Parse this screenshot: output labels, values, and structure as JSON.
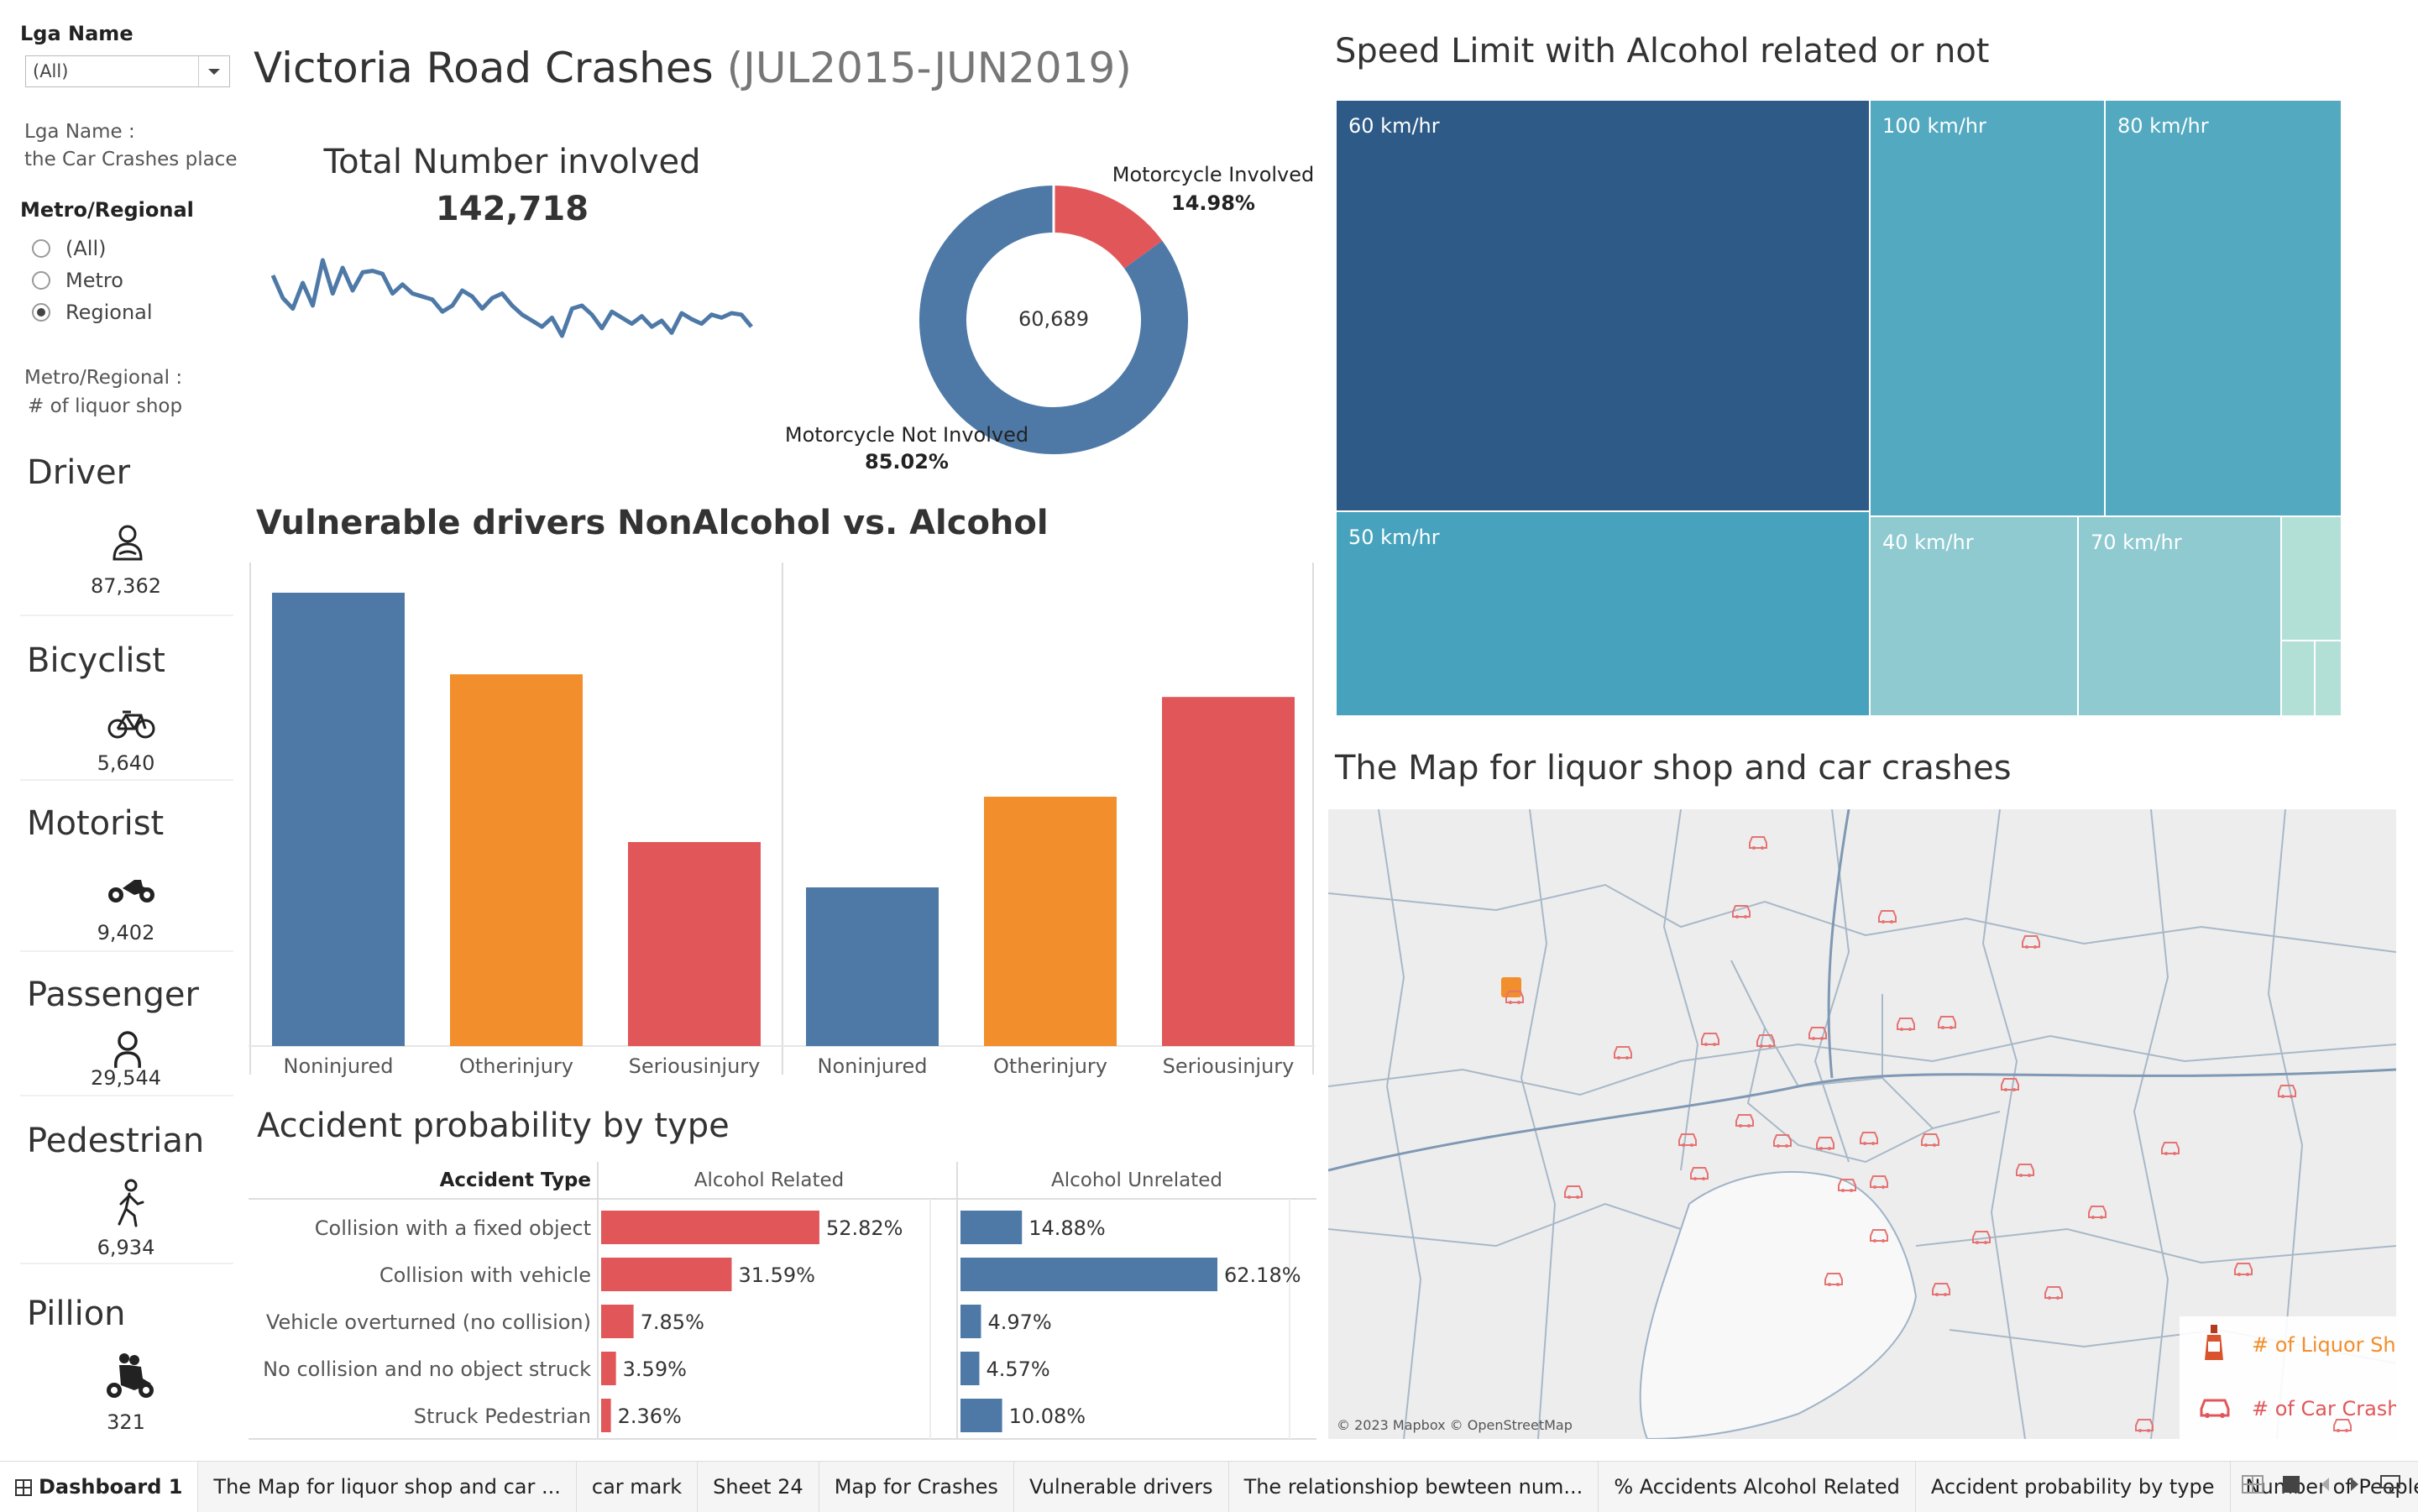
{
  "filters": {
    "lga_label": "Lga Name",
    "lga_value": "(All)",
    "lga_note_1": "Lga Name :",
    "lga_note_2": "the Car Crashes place",
    "metro_label": "Metro/Regional",
    "options": [
      "(All)",
      "Metro",
      "Regional"
    ],
    "selected": "Regional",
    "metro_note_1": "Metro/Regional :",
    "metro_note_2": "# of liquor shop"
  },
  "kpis": [
    {
      "title": "Driver",
      "icon": "driver-icon",
      "value": "87,362"
    },
    {
      "title": "Bicyclist",
      "icon": "bicycle-icon",
      "value": "5,640"
    },
    {
      "title": "Motorist",
      "icon": "motorcycle-icon",
      "value": "9,402"
    },
    {
      "title": "Passenger",
      "icon": "passenger-icon",
      "value": "29,544"
    },
    {
      "title": "Pedestrian",
      "icon": "pedestrian-icon",
      "value": "6,934"
    },
    {
      "title": "Pillion",
      "icon": "pillion-icon",
      "value": "321"
    }
  ],
  "header": {
    "title_main": "Victoria Road Crashes",
    "title_period": "(JUL2015-JUN2019)"
  },
  "total": {
    "label": "Total Number involved",
    "value": "142,718"
  },
  "donut": {
    "center": "60,689",
    "involved_label": "Motorcycle Involved",
    "involved_pct": "14.98%",
    "not_label": "Motorcycle Not Involved",
    "not_pct": "85.02%",
    "colors": {
      "involved": "#e15759",
      "not": "#4e79a7"
    }
  },
  "vuln_title": "Vulnerable drivers NonAlcohol vs. Alcohol",
  "accident_title": "Accident probability by type",
  "treemap_title": "Speed Limit with Alcohol related or not",
  "treemap": [
    {
      "label": "60 km/hr",
      "color": "#2e5a87"
    },
    {
      "label": "100 km/hr",
      "color": "#52a9c0"
    },
    {
      "label": "80 km/hr",
      "color": "#52a9c0"
    },
    {
      "label": "50 km/hr",
      "color": "#47a3bd"
    },
    {
      "label": "40 km/hr",
      "color": "#8fcad0"
    },
    {
      "label": "70 km/hr",
      "color": "#8fcad0"
    }
  ],
  "map": {
    "title": "The Map for liquor shop and car crashes",
    "attribution": "© 2023 Mapbox © OpenStreetMap",
    "legend_liquor": "# of Liquor Sh..",
    "legend_crash": "# of Car Crash.."
  },
  "tabs": [
    "Dashboard 1",
    "The Map for liquor shop and car ...",
    "car mark",
    "Sheet 24",
    "Map for Crashes",
    "Vulnerable drivers",
    "The relationshiop bewteen num...",
    "% Accidents Alcohol Related",
    "Accident probability by type",
    "Number of People"
  ],
  "chart_data": [
    {
      "type": "line",
      "title": "Total Number involved",
      "note": "sparkline, no axes shown",
      "y": [
        3100,
        2950,
        2880,
        3050,
        2900,
        3200,
        2980,
        3150,
        3000,
        3120,
        3130,
        3110,
        2980,
        3040,
        2980,
        2960,
        2940,
        2860,
        2900,
        3000,
        2960,
        2880,
        2950,
        2980,
        2900,
        2840,
        2800,
        2760,
        2820,
        2700,
        2880,
        2900,
        2840,
        2750,
        2860,
        2820,
        2780,
        2830,
        2760,
        2800,
        2720,
        2850,
        2810,
        2780,
        2840,
        2820,
        2850,
        2840,
        2760
      ]
    },
    {
      "type": "pie",
      "labels": [
        "Motorcycle Involved",
        "Motorcycle Not Involved"
      ],
      "values": [
        14.98,
        85.02
      ],
      "center_label": "60,689"
    },
    {
      "type": "bar",
      "title": "Vulnerable drivers NonAlcohol vs. Alcohol",
      "panels": [
        {
          "categories": [
            "Noninjured",
            "Otherinjury",
            "Seriousinjury"
          ],
          "values": [
            1.0,
            0.82,
            0.45
          ]
        },
        {
          "categories": [
            "Noninjured",
            "Otherinjury",
            "Seriousinjury"
          ],
          "values": [
            0.35,
            0.55,
            0.77
          ]
        }
      ],
      "colors": [
        "#4e79a7",
        "#f28e2b",
        "#e15759"
      ]
    },
    {
      "type": "bar",
      "orientation": "horizontal",
      "title": "Accident probability by type",
      "row_header": "Accident Type",
      "categories": [
        "Collision with a fixed object",
        "Collision with vehicle",
        "Vehicle overturned (no collision)",
        "No collision and no object struck",
        "Struck Pedestrian"
      ],
      "series": [
        {
          "name": "Alcohol Related",
          "values": [
            52.82,
            31.59,
            7.85,
            3.59,
            2.36
          ],
          "labels": [
            "52.82%",
            "31.59%",
            "7.85%",
            "3.59%",
            "2.36%"
          ],
          "color": "#e15759"
        },
        {
          "name": "Alcohol Unrelated",
          "values": [
            14.88,
            62.18,
            4.97,
            4.57,
            10.08
          ],
          "labels": [
            "14.88%",
            "62.18%",
            "4.97%",
            "4.57%",
            "10.08%"
          ],
          "color": "#4e79a7"
        }
      ]
    },
    {
      "type": "treemap",
      "title": "Speed Limit with Alcohol related or not",
      "categories": [
        "60 km/hr",
        "50 km/hr",
        "100 km/hr",
        "80 km/hr",
        "40 km/hr",
        "70 km/hr"
      ],
      "values": [
        1700,
        1150,
        1270,
        1280,
        650,
        690
      ]
    }
  ]
}
